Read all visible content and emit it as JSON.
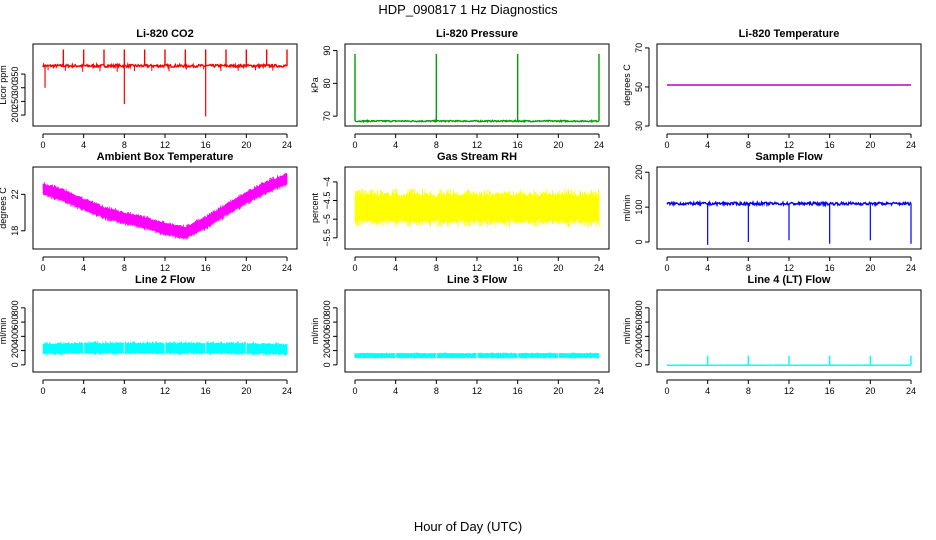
{
  "title": "HDP_090817  1 Hz Diagnostics",
  "xlabel": "Hour of Day (UTC)",
  "chart_data": [
    {
      "type": "line",
      "title": "Li-820 CO2",
      "ylabel": "Licor ppm",
      "color": "#ff0000",
      "xlim": [
        0,
        24
      ],
      "ylim": [
        160,
        460
      ],
      "yticks": [
        200,
        250,
        300,
        350
      ],
      "xticks": [
        0,
        4,
        8,
        12,
        16,
        20,
        24
      ],
      "base": 380,
      "noise": 5,
      "spikes_up": [
        2,
        4,
        6,
        8,
        10,
        12,
        14,
        16,
        18,
        20,
        22,
        24
      ],
      "spikes_up_to": 440,
      "spikes_down": [
        {
          "x": 8,
          "y": 240
        },
        {
          "x": 16,
          "y": 195
        },
        {
          "x": 0.2,
          "y": 300
        }
      ]
    },
    {
      "type": "line",
      "title": "Li-820 Pressure",
      "ylabel": "kPa",
      "color": "#00a000",
      "xlim": [
        0,
        24
      ],
      "ylim": [
        67,
        92
      ],
      "yticks": [
        70,
        80,
        90
      ],
      "xticks": [
        0,
        4,
        8,
        12,
        16,
        20,
        24
      ],
      "base": 68.5,
      "noise": 0.2,
      "spikes_up": [
        0,
        8,
        16,
        24
      ],
      "spikes_up_to": 89
    },
    {
      "type": "line",
      "title": "Li-820 Temperature",
      "ylabel": "degrees C",
      "color": "#c000c0",
      "xlim": [
        0,
        24
      ],
      "ylim": [
        30,
        72
      ],
      "yticks": [
        30,
        50,
        70
      ],
      "xticks": [
        0,
        4,
        8,
        12,
        16,
        20,
        24
      ],
      "base": 51,
      "noise": 0,
      "spikes_up": []
    },
    {
      "type": "band",
      "title": "Ambient Box Temperature",
      "ylabel": "degrees C",
      "color": "#ff00ff",
      "xlim": [
        0,
        24
      ],
      "ylim": [
        16,
        25
      ],
      "yticks": [
        18,
        22
      ],
      "xticks": [
        0,
        4,
        8,
        12,
        16,
        20,
        24
      ],
      "x": [
        0,
        2,
        4,
        6,
        8,
        10,
        12,
        14,
        16,
        18,
        20,
        22,
        24
      ],
      "y": [
        22.6,
        21.9,
        20.9,
        20.0,
        19.4,
        18.9,
        18.2,
        17.8,
        18.9,
        20.3,
        21.6,
        22.8,
        23.7
      ],
      "band": 0.9
    },
    {
      "type": "band",
      "title": "Gas Stream RH",
      "ylabel": "percent",
      "color": "#ffff00",
      "xlim": [
        0,
        24
      ],
      "ylim": [
        -5.8,
        -3.6
      ],
      "yticks": [
        -5.5,
        -5.0,
        -4.5,
        -4.0
      ],
      "xticks": [
        0,
        4,
        8,
        12,
        16,
        20,
        24
      ],
      "x": [
        0,
        24
      ],
      "y": [
        -4.7,
        -4.7
      ],
      "band": 0.55
    },
    {
      "type": "line",
      "title": "Sample Flow",
      "ylabel": "ml/min",
      "color": "#0000ff",
      "xlim": [
        0,
        24
      ],
      "ylim": [
        -20,
        215
      ],
      "yticks": [
        0,
        100,
        200
      ],
      "xticks": [
        0,
        4,
        8,
        12,
        16,
        20,
        24
      ],
      "base": 110,
      "noise": 4,
      "spikes_down": [
        {
          "x": 4,
          "y": -8
        },
        {
          "x": 8,
          "y": 0
        },
        {
          "x": 12,
          "y": 5
        },
        {
          "x": 16,
          "y": -5
        },
        {
          "x": 20,
          "y": 5
        },
        {
          "x": 24,
          "y": -5
        }
      ],
      "spikes_up": []
    },
    {
      "type": "band",
      "title": "Line 2 Flow",
      "ylabel": "ml/min",
      "color": "#00ffff",
      "xlim": [
        0,
        24
      ],
      "ylim": [
        -100,
        1050
      ],
      "yticks": [
        0,
        200,
        400,
        600,
        800
      ],
      "xticks": [
        0,
        4,
        8,
        12,
        16,
        20,
        24
      ],
      "x": [
        0,
        4,
        8,
        12,
        16,
        20,
        24
      ],
      "y": [
        225,
        235,
        235,
        235,
        235,
        230,
        215
      ],
      "band": 105
    },
    {
      "type": "band",
      "title": "Line 3 Flow",
      "ylabel": "ml/min",
      "color": "#00ffff",
      "xlim": [
        0,
        24
      ],
      "ylim": [
        -100,
        1050
      ],
      "yticks": [
        0,
        200,
        400,
        600,
        800
      ],
      "xticks": [
        0,
        4,
        8,
        12,
        16,
        20,
        24
      ],
      "x": [
        0,
        4,
        8,
        12,
        16,
        20,
        24
      ],
      "y": [
        130,
        130,
        130,
        130,
        130,
        130,
        130
      ],
      "band": 45
    },
    {
      "type": "line",
      "title": "Line 4 (LT) Flow",
      "ylabel": "ml/min",
      "color": "#00ffff",
      "xlim": [
        0,
        24
      ],
      "ylim": [
        -100,
        1050
      ],
      "yticks": [
        0,
        200,
        400,
        600,
        800
      ],
      "xticks": [
        0,
        4,
        8,
        12,
        16,
        20,
        24
      ],
      "base": -5,
      "noise": 3,
      "spikes_up": [
        4,
        8,
        12,
        16,
        20,
        24
      ],
      "spikes_up_to": 130
    }
  ]
}
